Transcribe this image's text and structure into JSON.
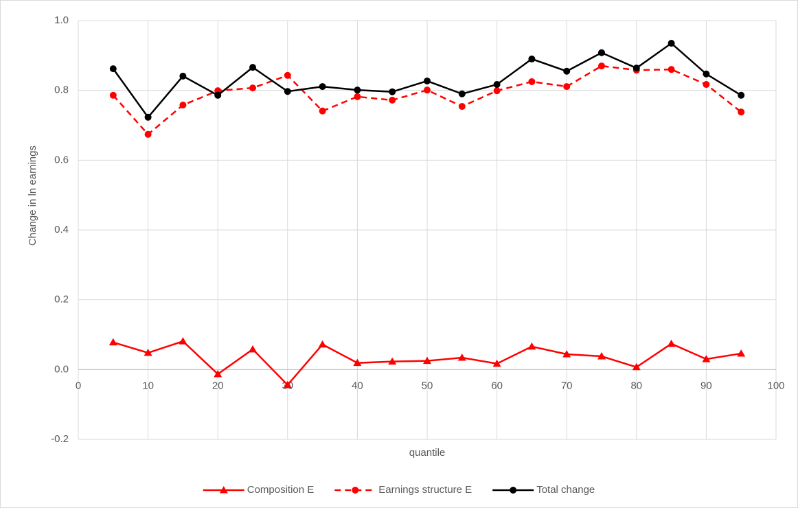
{
  "chart_data": {
    "type": "line",
    "x_label": "quantile",
    "y_label": "Change in ln earnings",
    "xlim": [
      0,
      100
    ],
    "xticks": [
      0,
      10,
      20,
      30,
      40,
      50,
      60,
      70,
      80,
      90,
      100
    ],
    "ylim": [
      -0.2,
      1.0
    ],
    "yticks": [
      -0.2,
      {
        "value": 0,
        "label": "0.0"
      },
      0.2,
      0.4,
      0.6,
      0.8,
      {
        "value": 1,
        "label": "1.0"
      }
    ],
    "grid": true,
    "legend": "bottom",
    "x": [
      5,
      10,
      15,
      20,
      25,
      30,
      35,
      40,
      45,
      50,
      55,
      60,
      65,
      70,
      75,
      80,
      85,
      90,
      95
    ],
    "series": [
      {
        "name": "Composition E",
        "color": "#ff0000",
        "marker": "triangle",
        "dash": false,
        "values": [
          0.078,
          0.048,
          0.081,
          -0.013,
          0.058,
          -0.044,
          0.072,
          0.019,
          0.023,
          0.025,
          0.034,
          0.017,
          0.066,
          0.044,
          0.038,
          0.007,
          0.074,
          0.03,
          0.046
        ]
      },
      {
        "name": "Earnings structure E",
        "color": "#ff0000",
        "marker": "circle",
        "dash": true,
        "values": [
          0.786,
          0.674,
          0.758,
          0.799,
          0.807,
          0.843,
          0.741,
          0.782,
          0.772,
          0.801,
          0.754,
          0.799,
          0.825,
          0.811,
          0.87,
          0.858,
          0.86,
          0.817,
          0.738
        ]
      },
      {
        "name": "Total change",
        "color": "#000000",
        "marker": "circle",
        "dash": false,
        "values": [
          0.862,
          0.723,
          0.841,
          0.786,
          0.866,
          0.797,
          0.811,
          0.801,
          0.796,
          0.827,
          0.79,
          0.817,
          0.89,
          0.855,
          0.908,
          0.864,
          0.935,
          0.847,
          0.786
        ]
      }
    ]
  }
}
